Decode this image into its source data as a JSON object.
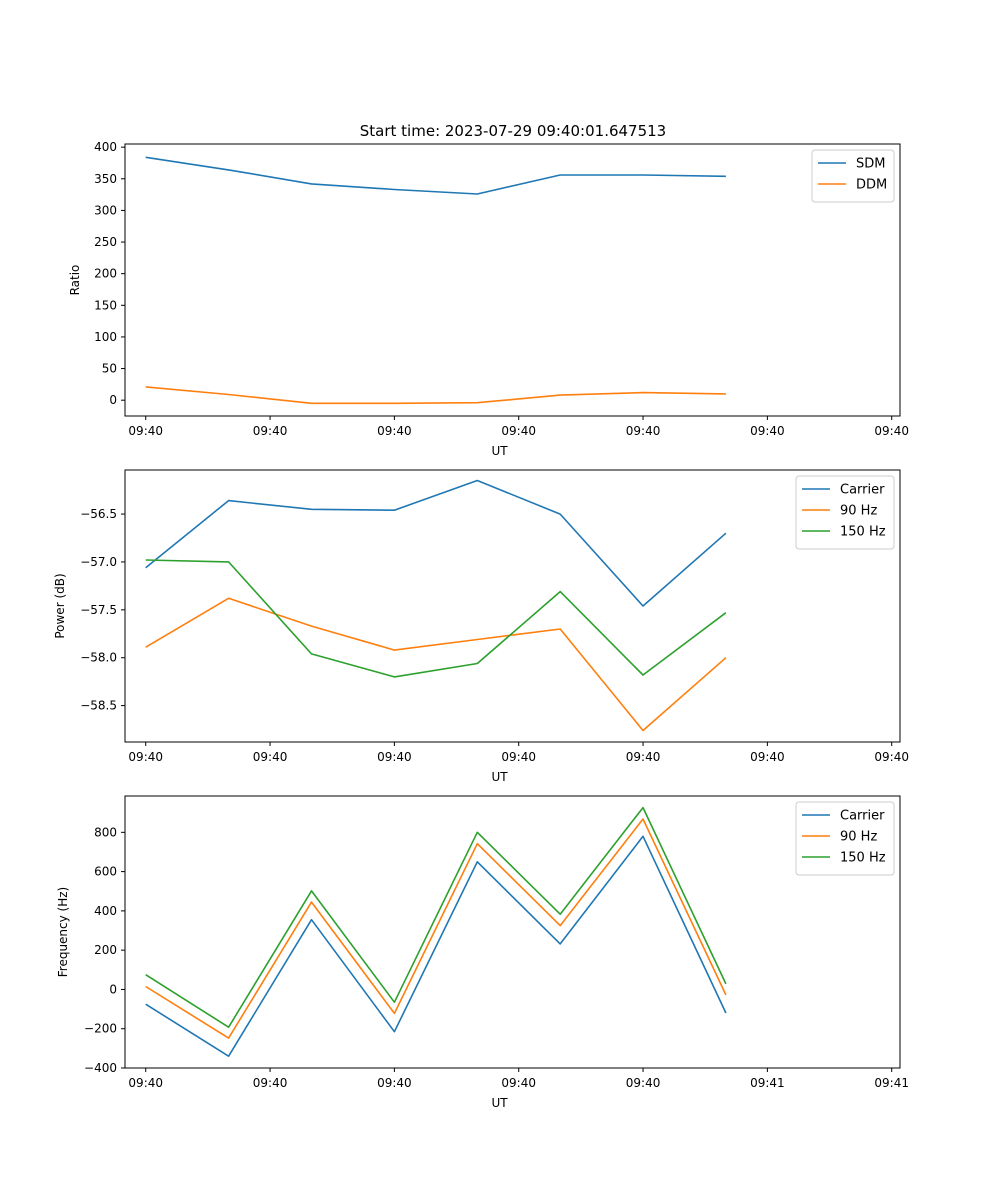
{
  "figure": {
    "title": "Start time: 2023-07-29 09:40:01.647513"
  },
  "colors": {
    "blue": "#1f77b4",
    "orange": "#ff7f0e",
    "green": "#2ca02c"
  },
  "chart_data": [
    {
      "type": "line",
      "id": "ratio",
      "xlabel": "UT",
      "ylabel": "Ratio",
      "x": [
        1,
        2,
        3,
        4,
        5,
        6,
        7,
        8
      ],
      "xlim": [
        0.75,
        10.1
      ],
      "x_ticks": [
        1,
        2.5,
        4,
        5.5,
        7,
        8.5,
        10
      ],
      "x_tick_labels": [
        "09:40",
        "09:40",
        "09:40",
        "09:40",
        "09:40",
        "09:40",
        "09:40"
      ],
      "ylim": [
        -25,
        405
      ],
      "y_ticks": [
        0,
        50,
        100,
        150,
        200,
        250,
        300,
        350,
        400
      ],
      "y_tick_labels": [
        "0",
        "50",
        "100",
        "150",
        "200",
        "250",
        "300",
        "350",
        "400"
      ],
      "legend_position": "top-right",
      "series": [
        {
          "name": "SDM",
          "color": "#1f77b4",
          "values": [
            384,
            364,
            342,
            333,
            326,
            356,
            356,
            354
          ]
        },
        {
          "name": "DDM",
          "color": "#ff7f0e",
          "values": [
            21,
            9,
            -5,
            -5,
            -4,
            8,
            12,
            10
          ]
        }
      ]
    },
    {
      "type": "line",
      "id": "power",
      "xlabel": "UT",
      "ylabel": "Power (dB)",
      "x": [
        1,
        2,
        3,
        4,
        5,
        6,
        7,
        8
      ],
      "xlim": [
        0.75,
        10.1
      ],
      "x_ticks": [
        1,
        2.5,
        4,
        5.5,
        7,
        8.5,
        10
      ],
      "x_tick_labels": [
        "09:40",
        "09:40",
        "09:40",
        "09:40",
        "09:40",
        "09:40",
        "09:40"
      ],
      "ylim": [
        -58.88,
        -56.04
      ],
      "y_ticks": [
        -56.5,
        -57.0,
        -57.5,
        -58.0,
        -58.5
      ],
      "y_tick_labels": [
        "−56.5",
        "−57.0",
        "−57.5",
        "−58.0",
        "−58.5"
      ],
      "legend_position": "top-right",
      "series": [
        {
          "name": "Carrier",
          "color": "#1f77b4",
          "values": [
            -57.06,
            -56.36,
            -56.45,
            -56.46,
            -56.15,
            -56.5,
            -57.46,
            -56.7
          ]
        },
        {
          "name": "90 Hz",
          "color": "#ff7f0e",
          "values": [
            -57.89,
            -57.38,
            -57.67,
            -57.92,
            -57.81,
            -57.7,
            -58.76,
            -58.0
          ]
        },
        {
          "name": "150 Hz",
          "color": "#2ca02c",
          "values": [
            -56.98,
            -57.0,
            -57.96,
            -58.2,
            -58.06,
            -57.31,
            -58.18,
            -57.53
          ]
        }
      ]
    },
    {
      "type": "line",
      "id": "frequency",
      "xlabel": "UT",
      "ylabel": "Frequency (Hz)",
      "x": [
        1,
        2,
        3,
        4,
        5,
        6,
        7,
        8
      ],
      "xlim": [
        0.75,
        10.1
      ],
      "x_ticks": [
        1,
        2.5,
        4,
        5.5,
        7,
        8.5,
        10
      ],
      "x_tick_labels": [
        "09:40",
        "09:40",
        "09:40",
        "09:40",
        "09:40",
        "09:41",
        "09:41"
      ],
      "ylim": [
        -400,
        985
      ],
      "y_ticks": [
        -400,
        -200,
        0,
        200,
        400,
        600,
        800
      ],
      "y_tick_labels": [
        "−400",
        "−200",
        "0",
        "200",
        "400",
        "600",
        "800"
      ],
      "legend_position": "top-right",
      "series": [
        {
          "name": "Carrier",
          "color": "#1f77b4",
          "values": [
            -75,
            -340,
            355,
            -215,
            650,
            232,
            780,
            -120
          ]
        },
        {
          "name": "90 Hz",
          "color": "#ff7f0e",
          "values": [
            15,
            -248,
            445,
            -122,
            742,
            325,
            868,
            -28
          ]
        },
        {
          "name": "150 Hz",
          "color": "#2ca02c",
          "values": [
            75,
            -192,
            502,
            -65,
            800,
            383,
            926,
            28
          ]
        }
      ]
    }
  ]
}
